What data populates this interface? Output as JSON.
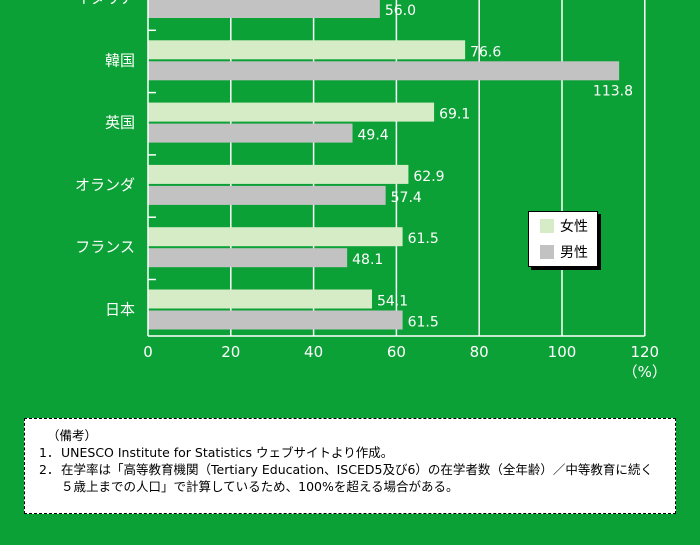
{
  "chart_data": {
    "type": "bar",
    "orientation": "horizontal",
    "categories": [
      "イタリア",
      "韓国",
      "英国",
      "オランダ",
      "フランス",
      "日本"
    ],
    "series": [
      {
        "name": "女性",
        "color": "#d6ecc6",
        "values": [
          null,
          76.6,
          69.1,
          62.9,
          61.5,
          54.1
        ]
      },
      {
        "name": "男性",
        "color": "#c2c2c2",
        "values": [
          56.0,
          113.8,
          49.4,
          57.4,
          48.1,
          61.5
        ]
      }
    ],
    "value_labels": {
      "女性": [
        "",
        "76.6",
        "69.1",
        "62.9",
        "61.5",
        "54.1"
      ],
      "男性": [
        "56.0",
        "113.8",
        "49.4",
        "57.4",
        "48.1",
        "61.5"
      ]
    },
    "xticks": [
      "0",
      "20",
      "40",
      "60",
      "80",
      "100",
      "120"
    ],
    "xlim": [
      0,
      120
    ],
    "unit_label": "（%）",
    "grid": true,
    "legend_position": "right"
  },
  "legend": [
    {
      "label": "女性",
      "color": "#d6ecc6"
    },
    {
      "label": "男性",
      "color": "#c2c2c2"
    }
  ],
  "notes": {
    "header": "（備考）",
    "items": [
      {
        "num": "1．",
        "text": "UNESCO Institute for Statistics ウェブサイトより作成。"
      },
      {
        "num": "2．",
        "text": "在学率は「高等教育機関（Tertiary Education、ISCED5及び6）の在学者数（全年齢）／中等教育に続く５歳上までの人口」で計算しているため、100%を超える場合がある。"
      }
    ]
  }
}
